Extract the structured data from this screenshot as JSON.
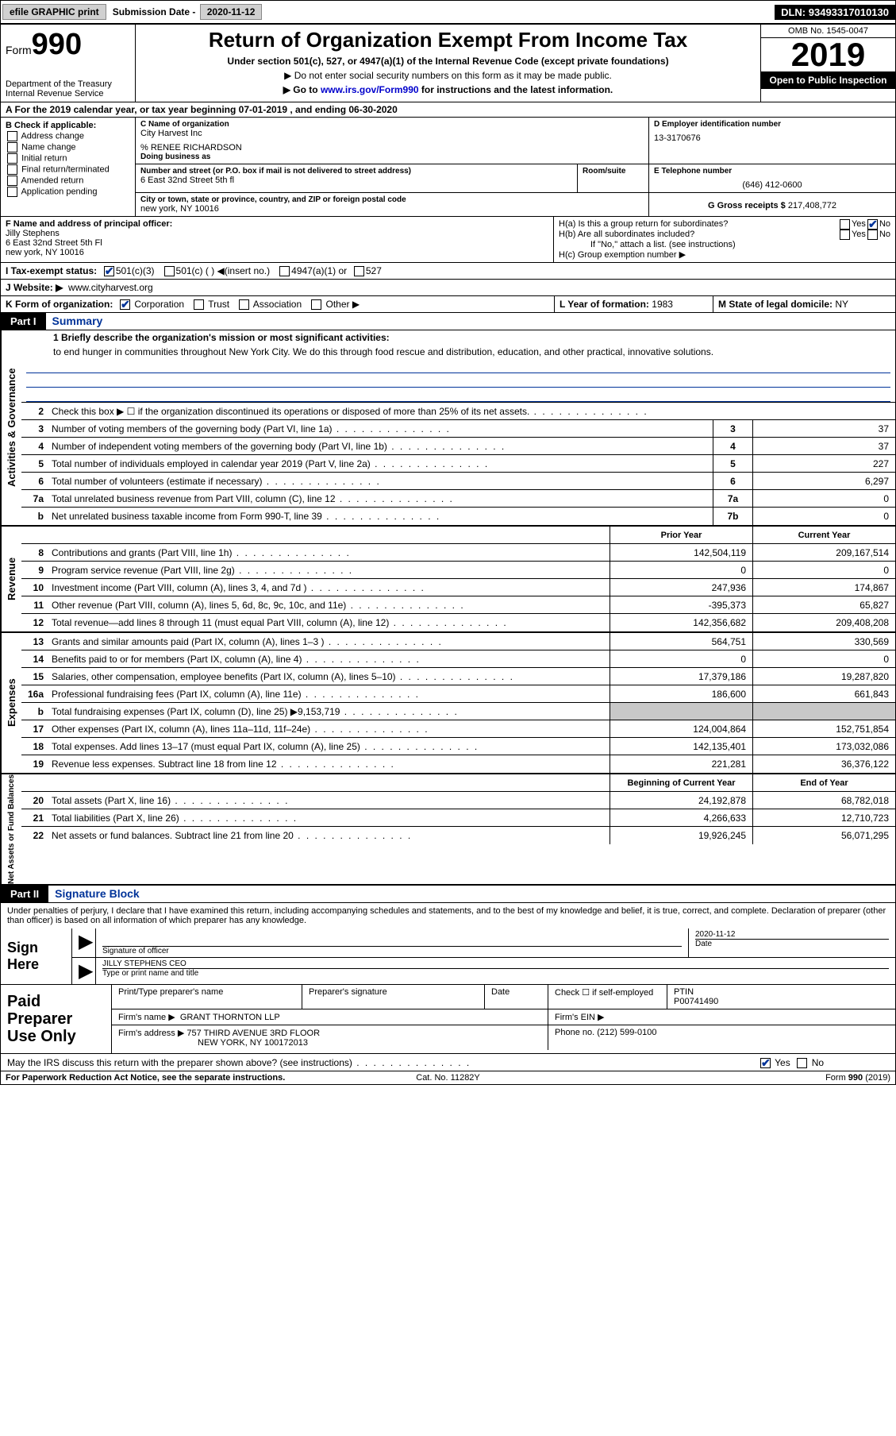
{
  "topbar": {
    "efile": "efile GRAPHIC print",
    "submission_label": "Submission Date",
    "submission_date": "2020-11-12",
    "dln_label": "DLN:",
    "dln": "93493317010130"
  },
  "header": {
    "form_word": "Form",
    "form_num": "990",
    "title": "Return of Organization Exempt From Income Tax",
    "sub1": "Under section 501(c), 527, or 4947(a)(1) of the Internal Revenue Code (except private foundations)",
    "sub2": "▶ Do not enter social security numbers on this form as it may be made public.",
    "sub3_pre": "▶ Go to ",
    "sub3_link": "www.irs.gov/Form990",
    "sub3_post": " for instructions and the latest information.",
    "dept": "Department of the Treasury\nInternal Revenue Service",
    "omb": "OMB No. 1545-0047",
    "year": "2019",
    "open": "Open to Public Inspection"
  },
  "row_a": "A For the 2019 calendar year, or tax year beginning 07-01-2019   , and ending 06-30-2020",
  "box_b": {
    "title": "B Check if applicable:",
    "items": [
      "Address change",
      "Name change",
      "Initial return",
      "Final return/terminated",
      "Amended return",
      "Application pending"
    ]
  },
  "box_c": {
    "lab_name": "C Name of organization",
    "name": "City Harvest Inc",
    "care_of": "% RENEE RICHARDSON",
    "dba_lab": "Doing business as",
    "addr_lab": "Number and street (or P.O. box if mail is not delivered to street address)",
    "room_lab": "Room/suite",
    "addr": "6 East 32nd Street 5th fl",
    "city_lab": "City or town, state or province, country, and ZIP or foreign postal code",
    "city": "new york, NY  10016"
  },
  "box_d": {
    "lab": "D Employer identification number",
    "val": "13-3170676"
  },
  "box_e": {
    "lab": "E Telephone number",
    "val": "(646) 412-0600"
  },
  "box_g": {
    "lab": "G Gross receipts $",
    "val": "217,408,772"
  },
  "box_f": {
    "lab": "F  Name and address of principal officer:",
    "name": "Jilly Stephens",
    "addr1": "6 East 32nd Street 5th Fl",
    "addr2": "new york, NY  10016"
  },
  "box_h": {
    "ha": "H(a)  Is this a group return for subordinates?",
    "hb": "H(b)  Are all subordinates included?",
    "hb_note": "If \"No,\" attach a list. (see instructions)",
    "hc": "H(c)  Group exemption number ▶"
  },
  "row_i": {
    "lab": "I  Tax-exempt status:",
    "opts": [
      "501(c)(3)",
      "501(c) (  ) ◀(insert no.)",
      "4947(a)(1) or",
      "527"
    ]
  },
  "row_j": {
    "lab": "J  Website: ▶",
    "val": "www.cityharvest.org"
  },
  "row_k": {
    "lab": "K Form of organization:",
    "opts": [
      "Corporation",
      "Trust",
      "Association",
      "Other ▶"
    ],
    "l_lab": "L Year of formation:",
    "l_val": "1983",
    "m_lab": "M State of legal domicile:",
    "m_val": "NY"
  },
  "part1": {
    "num": "Part I",
    "title": "Summary"
  },
  "mission_lab": "1  Briefly describe the organization's mission or most significant activities:",
  "mission": "to end hunger in communities throughout New York City. We do this through food rescue and distribution, education, and other practical, innovative solutions.",
  "gov_lines": [
    {
      "n": "2",
      "d": "Check this box ▶ ☐  if the organization discontinued its operations or disposed of more than 25% of its net assets."
    },
    {
      "n": "3",
      "d": "Number of voting members of the governing body (Part VI, line 1a)",
      "box": "3",
      "v": "37"
    },
    {
      "n": "4",
      "d": "Number of independent voting members of the governing body (Part VI, line 1b)",
      "box": "4",
      "v": "37"
    },
    {
      "n": "5",
      "d": "Total number of individuals employed in calendar year 2019 (Part V, line 2a)",
      "box": "5",
      "v": "227"
    },
    {
      "n": "6",
      "d": "Total number of volunteers (estimate if necessary)",
      "box": "6",
      "v": "6,297"
    },
    {
      "n": "7a",
      "d": "Total unrelated business revenue from Part VIII, column (C), line 12",
      "box": "7a",
      "v": "0"
    },
    {
      "n": "b",
      "d": "Net unrelated business taxable income from Form 990-T, line 39",
      "box": "7b",
      "v": "0"
    }
  ],
  "col_headers": {
    "py": "Prior Year",
    "cy": "Current Year",
    "by": "Beginning of Current Year",
    "ey": "End of Year"
  },
  "rev_lines": [
    {
      "n": "8",
      "d": "Contributions and grants (Part VIII, line 1h)",
      "py": "142,504,119",
      "cy": "209,167,514"
    },
    {
      "n": "9",
      "d": "Program service revenue (Part VIII, line 2g)",
      "py": "0",
      "cy": "0"
    },
    {
      "n": "10",
      "d": "Investment income (Part VIII, column (A), lines 3, 4, and 7d )",
      "py": "247,936",
      "cy": "174,867"
    },
    {
      "n": "11",
      "d": "Other revenue (Part VIII, column (A), lines 5, 6d, 8c, 9c, 10c, and 11e)",
      "py": "-395,373",
      "cy": "65,827"
    },
    {
      "n": "12",
      "d": "Total revenue—add lines 8 through 11 (must equal Part VIII, column (A), line 12)",
      "py": "142,356,682",
      "cy": "209,408,208"
    }
  ],
  "exp_lines": [
    {
      "n": "13",
      "d": "Grants and similar amounts paid (Part IX, column (A), lines 1–3 )",
      "py": "564,751",
      "cy": "330,569"
    },
    {
      "n": "14",
      "d": "Benefits paid to or for members (Part IX, column (A), line 4)",
      "py": "0",
      "cy": "0"
    },
    {
      "n": "15",
      "d": "Salaries, other compensation, employee benefits (Part IX, column (A), lines 5–10)",
      "py": "17,379,186",
      "cy": "19,287,820"
    },
    {
      "n": "16a",
      "d": "Professional fundraising fees (Part IX, column (A), line 11e)",
      "py": "186,600",
      "cy": "661,843"
    },
    {
      "n": "b",
      "d": "Total fundraising expenses (Part IX, column (D), line 25) ▶9,153,719",
      "grey": true
    },
    {
      "n": "17",
      "d": "Other expenses (Part IX, column (A), lines 11a–11d, 11f–24e)",
      "py": "124,004,864",
      "cy": "152,751,854"
    },
    {
      "n": "18",
      "d": "Total expenses. Add lines 13–17 (must equal Part IX, column (A), line 25)",
      "py": "142,135,401",
      "cy": "173,032,086"
    },
    {
      "n": "19",
      "d": "Revenue less expenses. Subtract line 18 from line 12",
      "py": "221,281",
      "cy": "36,376,122"
    }
  ],
  "net_lines": [
    {
      "n": "20",
      "d": "Total assets (Part X, line 16)",
      "py": "24,192,878",
      "cy": "68,782,018"
    },
    {
      "n": "21",
      "d": "Total liabilities (Part X, line 26)",
      "py": "4,266,633",
      "cy": "12,710,723"
    },
    {
      "n": "22",
      "d": "Net assets or fund balances. Subtract line 21 from line 20",
      "py": "19,926,245",
      "cy": "56,071,295"
    }
  ],
  "vtabs": {
    "gov": "Activities & Governance",
    "rev": "Revenue",
    "exp": "Expenses",
    "net": "Net Assets or Fund Balances"
  },
  "part2": {
    "num": "Part II",
    "title": "Signature Block"
  },
  "penalties": "Under penalties of perjury, I declare that I have examined this return, including accompanying schedules and statements, and to the best of my knowledge and belief, it is true, correct, and complete. Declaration of preparer (other than officer) is based on all information of which preparer has any knowledge.",
  "sign": {
    "here": "Sign Here",
    "sig_lab": "Signature of officer",
    "date_lab": "Date",
    "date": "2020-11-12",
    "name": "JILLY STEPHENS  CEO",
    "name_lab": "Type or print name and title"
  },
  "paid": {
    "title": "Paid Preparer Use Only",
    "h1": "Print/Type preparer's name",
    "h2": "Preparer's signature",
    "h3": "Date",
    "h4": "Check ☐ if self-employed",
    "h5": "PTIN",
    "ptin": "P00741490",
    "firm_lab": "Firm's name   ▶",
    "firm": "GRANT THORNTON LLP",
    "ein_lab": "Firm's EIN ▶",
    "addr_lab": "Firm's address ▶",
    "addr1": "757 THIRD AVENUE 3RD FLOOR",
    "addr2": "NEW YORK, NY  100172013",
    "phone_lab": "Phone no.",
    "phone": "(212) 599-0100"
  },
  "discuss": "May the IRS discuss this return with the preparer shown above? (see instructions)",
  "footer": {
    "l": "For Paperwork Reduction Act Notice, see the separate instructions.",
    "c": "Cat. No. 11282Y",
    "r": "Form 990 (2019)"
  }
}
